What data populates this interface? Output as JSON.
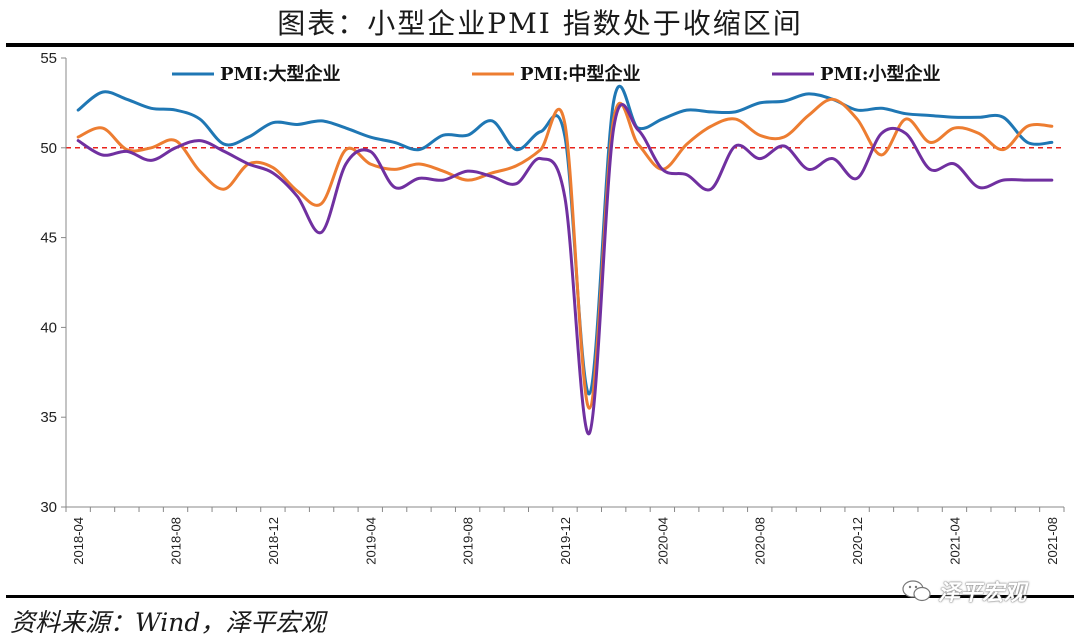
{
  "title": "图表：小型企业PMI 指数处于收缩区间",
  "source": "资料来源：Wind，泽平宏观",
  "watermark": "泽平宏观",
  "chart_data": {
    "type": "line",
    "title": "图表：小型企业PMI 指数处于收缩区间",
    "xlabel": "",
    "ylabel": "",
    "ylim": [
      30,
      55
    ],
    "yticks": [
      30,
      35,
      40,
      45,
      50,
      55
    ],
    "x": [
      "2018-04",
      "2018-05",
      "2018-06",
      "2018-07",
      "2018-08",
      "2018-09",
      "2018-10",
      "2018-11",
      "2018-12",
      "2019-01",
      "2019-02",
      "2019-03",
      "2019-04",
      "2019-05",
      "2019-06",
      "2019-07",
      "2019-08",
      "2019-09",
      "2019-10",
      "2019-11",
      "2019-12",
      "2020-01",
      "2020-02",
      "2020-03",
      "2020-04",
      "2020-05",
      "2020-06",
      "2020-07",
      "2020-08",
      "2020-09",
      "2020-10",
      "2020-11",
      "2020-12",
      "2021-01",
      "2021-02",
      "2021-03",
      "2021-04",
      "2021-05",
      "2021-06",
      "2021-07",
      "2021-08"
    ],
    "xtick_labels": [
      "2018-04",
      "2018-08",
      "2018-12",
      "2019-04",
      "2019-08",
      "2019-12",
      "2020-04",
      "2020-08",
      "2020-12",
      "2021-04",
      "2021-08"
    ],
    "legend_position": "top",
    "reference_line": {
      "y": 50,
      "color": "#e8231c",
      "style": "dashed"
    },
    "series": [
      {
        "name": "PMI:大型企业",
        "color": "#1f77b4",
        "values": [
          52.1,
          53.1,
          52.7,
          52.2,
          52.1,
          51.6,
          50.2,
          50.6,
          51.4,
          51.3,
          51.5,
          51.1,
          50.6,
          50.3,
          49.9,
          50.7,
          50.7,
          51.5,
          49.9,
          50.9,
          50.6,
          36.3,
          52.6,
          51.1,
          51.6,
          52.1,
          52.0,
          52.0,
          52.5,
          52.6,
          53.0,
          52.7,
          52.1,
          52.2,
          51.9,
          51.8,
          51.7,
          51.7,
          51.7,
          50.3,
          50.3
        ]
      },
      {
        "name": "PMI:中型企业",
        "color": "#ed7d31",
        "values": [
          50.6,
          51.1,
          49.9,
          50.0,
          50.4,
          48.7,
          47.7,
          49.1,
          48.9,
          47.6,
          46.9,
          49.9,
          49.1,
          48.8,
          49.1,
          48.7,
          48.2,
          48.6,
          49.0,
          49.9,
          51.3,
          35.5,
          51.6,
          50.2,
          48.8,
          50.2,
          51.2,
          51.6,
          50.7,
          50.6,
          51.8,
          52.7,
          51.6,
          49.6,
          51.6,
          50.3,
          51.1,
          50.8,
          49.9,
          51.2,
          51.2
        ]
      },
      {
        "name": "PMI:小型企业",
        "color": "#7030a0",
        "values": [
          50.4,
          49.6,
          49.8,
          49.3,
          50.0,
          50.4,
          49.8,
          49.1,
          48.6,
          47.3,
          45.3,
          49.1,
          49.8,
          47.8,
          48.3,
          48.2,
          48.7,
          48.4,
          48.0,
          49.4,
          47.2,
          34.1,
          51.1,
          51.0,
          48.8,
          48.5,
          47.7,
          50.1,
          49.4,
          50.1,
          48.8,
          49.4,
          48.3,
          50.8,
          50.8,
          48.8,
          49.1,
          47.8,
          48.2,
          48.2,
          48.2
        ]
      }
    ]
  }
}
